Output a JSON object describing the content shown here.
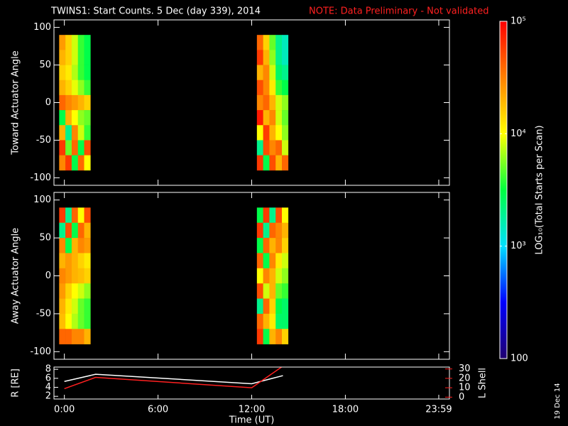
{
  "chart_data": [
    {
      "type": "heatmap",
      "title": "TWINS1: Start Counts.  5 Dec (day 339), 2014",
      "annotation": "NOTE: Data Preliminary - Not validated",
      "ylabel": "Toward Actuator Angle",
      "x": [
        -8,
        16,
        40,
        64,
        88,
        752,
        776,
        800,
        824,
        848
      ],
      "y": [
        80,
        60,
        40,
        20,
        0,
        -20,
        -40,
        -60,
        -80
      ],
      "z": [
        [
          25000,
          15000,
          8000,
          4000,
          3000,
          40000,
          15000,
          5000,
          2000,
          1500
        ],
        [
          20000,
          15000,
          8000,
          4000,
          3000,
          60000,
          20000,
          6000,
          2000,
          1500
        ],
        [
          15000,
          12000,
          7000,
          4000,
          3000,
          20000,
          30000,
          8000,
          2500,
          2000
        ],
        [
          20000,
          15000,
          9000,
          6000,
          4000,
          50000,
          30000,
          12000,
          4000,
          3000
        ],
        [
          40000,
          30000,
          25000,
          20000,
          15000,
          30000,
          40000,
          20000,
          8000,
          6000
        ],
        [
          3000,
          20000,
          10000,
          6000,
          5000,
          80000,
          20000,
          30000,
          8000,
          5000
        ],
        [
          20000,
          2000,
          30000,
          8000,
          4000,
          10000,
          60000,
          20000,
          10000,
          6000
        ],
        [
          60000,
          5000,
          40000,
          3000,
          50000,
          2000,
          50000,
          30000,
          40000,
          8000
        ],
        [
          30000,
          60000,
          3000,
          40000,
          10000,
          60000,
          3000,
          50000,
          20000,
          40000
        ]
      ],
      "xlim": [
        -40,
        1480
      ],
      "ylim": [
        -110,
        110
      ],
      "yticks": [
        -100,
        -50,
        0,
        50,
        100
      ]
    },
    {
      "type": "heatmap",
      "ylabel": "Away Actuator Angle",
      "x": [
        -8,
        16,
        40,
        64,
        88,
        752,
        776,
        800,
        824,
        848
      ],
      "y": [
        80,
        60,
        40,
        20,
        0,
        -20,
        -40,
        -60,
        -80
      ],
      "z": [
        [
          60000,
          2000,
          40000,
          10000,
          50000,
          3000,
          60000,
          2000,
          50000,
          10000
        ],
        [
          2000,
          50000,
          3000,
          40000,
          20000,
          60000,
          2000,
          40000,
          30000,
          20000
        ],
        [
          30000,
          3000,
          20000,
          30000,
          25000,
          3000,
          40000,
          20000,
          30000,
          15000
        ],
        [
          20000,
          25000,
          20000,
          15000,
          12000,
          40000,
          3000,
          30000,
          12000,
          8000
        ],
        [
          30000,
          25000,
          20000,
          18000,
          15000,
          10000,
          30000,
          20000,
          8000,
          6000
        ],
        [
          25000,
          15000,
          10000,
          8000,
          6000,
          50000,
          8000,
          20000,
          5000,
          4000
        ],
        [
          20000,
          12000,
          8000,
          5000,
          4000,
          2000,
          40000,
          15000,
          3000,
          2500
        ],
        [
          18000,
          10000,
          7000,
          5000,
          4000,
          40000,
          20000,
          12000,
          2500,
          2500
        ],
        [
          40000,
          40000,
          30000,
          30000,
          20000,
          60000,
          3000,
          20000,
          30000,
          15000
        ]
      ],
      "xlim": [
        -40,
        1480
      ],
      "ylim": [
        -110,
        110
      ],
      "yticks": [
        -100,
        -50,
        0,
        50,
        100
      ]
    },
    {
      "type": "colorbar",
      "label": "LOG₁₀(Total Starts per Scan)",
      "ylim": [
        100,
        100000
      ],
      "log": true,
      "yticks": [
        100,
        {
          "value": 1000,
          "label": "10³"
        },
        {
          "value": 10000,
          "label": "10⁴"
        },
        {
          "value": 100000,
          "label": "10⁵"
        }
      ],
      "colors": [
        "#200070",
        "#0000ff",
        "#00e0ff",
        "#00ff40",
        "#ffff00",
        "#ff8000",
        "#ff0000"
      ]
    },
    {
      "type": "line",
      "x": [
        0,
        120,
        720,
        840
      ],
      "series": [
        {
          "color": "#ffffff",
          "values": [
            5.3,
            6.9,
            4.8,
            6.6
          ]
        },
        {
          "color": "#ff2020",
          "axis": "y2",
          "values": [
            9,
            21,
            10,
            33
          ]
        }
      ],
      "xlim": [
        -40,
        1480
      ],
      "xticks": [
        {
          "value": 0,
          "label": "0:00"
        },
        {
          "value": 360,
          "label": "6:00"
        },
        {
          "value": 720,
          "label": "12:00"
        },
        {
          "value": 1080,
          "label": "18:00"
        },
        {
          "value": 1439,
          "label": "23:59"
        }
      ],
      "ylim": [
        1.4,
        8.5
      ],
      "yticks": [
        2,
        4,
        6,
        8
      ],
      "y2lim": [
        -2,
        32
      ],
      "y2ticks": [
        0,
        10,
        20,
        30
      ],
      "xlabel": "Time (UT)",
      "ylabel": "R [RE]",
      "y2label": "L Shell",
      "annotation": "19 Dec 14"
    }
  ]
}
